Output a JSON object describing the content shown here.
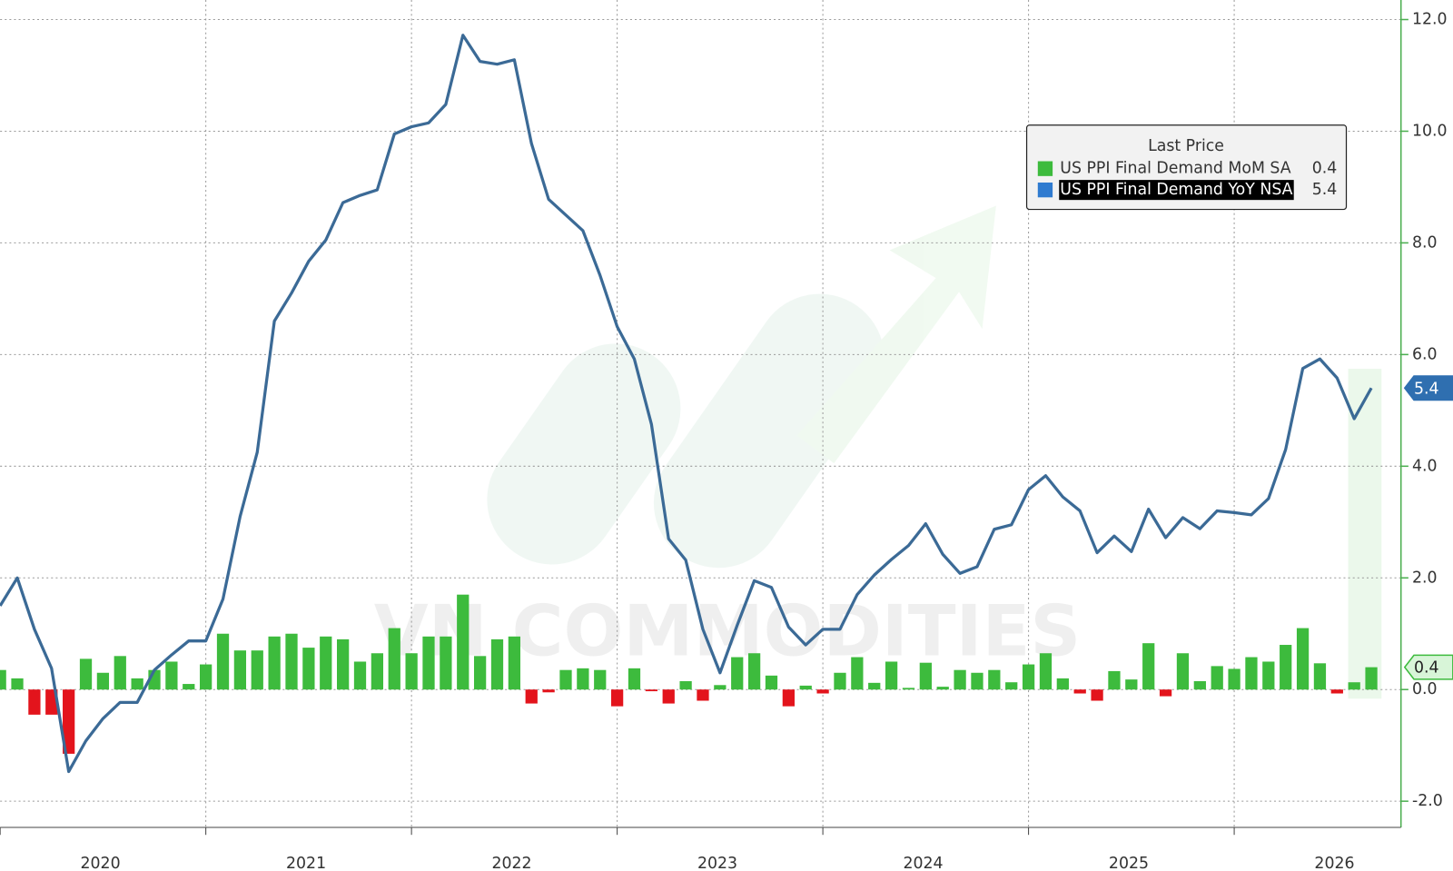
{
  "chart_data": {
    "type": "bar-line",
    "watermark": "VN COMMODITIES",
    "legend_title": "Last Price",
    "categories": [
      "2020",
      null,
      null,
      null,
      null,
      null,
      null,
      null,
      null,
      null,
      null,
      null,
      "2021",
      null,
      null,
      null,
      null,
      null,
      null,
      null,
      null,
      null,
      null,
      null,
      "2022",
      null,
      null,
      null,
      null,
      null,
      null,
      null,
      null,
      null,
      null,
      null,
      "2023",
      null,
      null,
      null,
      null,
      null,
      null,
      null,
      null,
      null,
      null,
      null,
      "2024",
      null,
      null,
      null,
      null,
      null,
      null,
      null,
      null,
      null,
      null,
      null,
      "2025",
      null,
      null,
      null,
      null,
      null,
      null,
      null,
      null,
      null,
      null,
      null,
      "2026",
      null,
      null,
      null,
      null,
      null,
      null,
      null,
      null
    ],
    "series": [
      {
        "name": "US PPI Final Demand MoM SA",
        "type": "bar",
        "color": "#3dbb3d",
        "negative_color": "#e3141c",
        "values": [
          0.35,
          0.2,
          -0.45,
          -0.45,
          -1.15,
          0.55,
          0.3,
          0.6,
          0.2,
          0.35,
          0.5,
          0.1,
          0.45,
          1.0,
          0.7,
          0.7,
          0.95,
          1.0,
          0.75,
          0.95,
          0.9,
          0.5,
          0.65,
          1.1,
          0.65,
          0.95,
          0.95,
          1.7,
          0.6,
          0.9,
          0.95,
          -0.25,
          -0.05,
          0.35,
          0.38,
          0.35,
          -0.3,
          0.38,
          -0.03,
          -0.25,
          0.15,
          -0.2,
          0.08,
          0.58,
          0.65,
          0.25,
          -0.3,
          0.07,
          -0.07,
          0.3,
          0.58,
          0.12,
          0.5,
          0.03,
          0.48,
          0.05,
          0.35,
          0.3,
          0.35,
          0.13,
          0.45,
          0.65,
          0.2,
          -0.07,
          -0.2,
          0.33,
          0.18,
          0.83,
          -0.12,
          0.65,
          0.15,
          0.42,
          0.37,
          0.58,
          0.5,
          0.8,
          1.1,
          0.47,
          -0.07,
          0.13,
          0.4
        ]
      },
      {
        "name": "US PPI Final Demand YoY NSA",
        "type": "line",
        "color": "#3b6a96",
        "values": [
          1.5,
          2.0,
          1.08,
          0.38,
          -1.47,
          -0.92,
          -0.52,
          -0.23,
          -0.23,
          0.35,
          0.62,
          0.87,
          0.87,
          1.62,
          3.1,
          4.25,
          6.6,
          7.1,
          7.67,
          8.05,
          8.72,
          8.85,
          8.95,
          9.95,
          10.08,
          10.15,
          10.48,
          11.72,
          11.25,
          11.2,
          11.28,
          9.78,
          8.78,
          8.5,
          8.22,
          7.42,
          6.5,
          5.92,
          4.75,
          2.7,
          2.32,
          1.08,
          0.3,
          1.15,
          1.95,
          1.83,
          1.12,
          0.8,
          1.08,
          1.08,
          1.7,
          2.05,
          2.33,
          2.58,
          2.97,
          2.42,
          2.08,
          2.2,
          2.87,
          2.95,
          3.58,
          3.83,
          3.45,
          3.2,
          2.45,
          2.75,
          2.47,
          3.23,
          2.72,
          3.08,
          2.88,
          3.2,
          3.17,
          3.13,
          3.42,
          4.3,
          5.75,
          5.92,
          5.58,
          4.85,
          5.4
        ]
      }
    ],
    "ylim": [
      -2.47,
      12.35
    ],
    "yticks": [
      {
        "value": -2,
        "label": "-2.0"
      },
      {
        "value": 0,
        "label": "0.0"
      },
      {
        "value": 2,
        "label": "2.0"
      },
      {
        "value": 4,
        "label": "4.0"
      },
      {
        "value": 6,
        "label": "6.0"
      },
      {
        "value": 8,
        "label": "8.0"
      },
      {
        "value": 10,
        "label": "10.0"
      },
      {
        "value": 12,
        "label": "12.0"
      }
    ],
    "grid": true,
    "legend_position": "upper right"
  }
}
